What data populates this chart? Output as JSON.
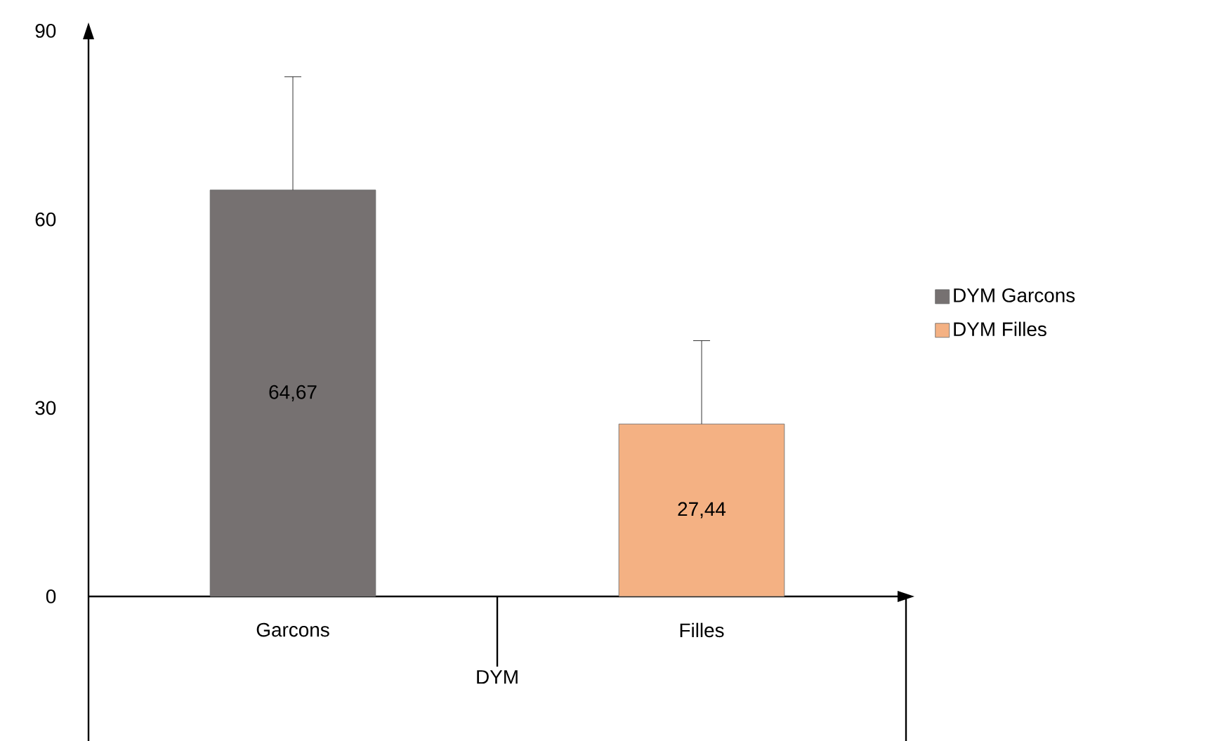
{
  "chart_data": {
    "type": "bar",
    "xlabel": "DYM",
    "categories": [
      "Garcons",
      "Filles"
    ],
    "series": [
      {
        "name": "DYM Garcons",
        "color": "#767171",
        "values": [
          64.67,
          null
        ],
        "errors": [
          [
            64.67,
            82.7
          ],
          null
        ],
        "value_labels": [
          "64,67",
          null
        ]
      },
      {
        "name": "DYM Filles",
        "color": "#f4b183",
        "values": [
          null,
          27.44
        ],
        "errors": [
          null,
          [
            27.44,
            40.7
          ]
        ],
        "value_labels": [
          null,
          "27,44"
        ]
      }
    ],
    "ylim": [
      0,
      90
    ],
    "yticks": [
      0,
      30,
      60,
      90
    ],
    "grid": false,
    "legend": "right"
  }
}
